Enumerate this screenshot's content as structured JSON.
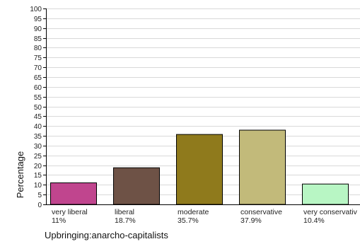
{
  "chart_data": {
    "type": "bar",
    "ylabel": "Percentage",
    "xlabel": "Upbringing:anarcho-capitalists",
    "ylim": [
      0,
      100
    ],
    "yticks": [
      0,
      5,
      10,
      15,
      20,
      25,
      30,
      35,
      40,
      45,
      50,
      55,
      60,
      65,
      70,
      75,
      80,
      85,
      90,
      95,
      100
    ],
    "grid": true,
    "categories": [
      "very liberal",
      "liberal",
      "moderate",
      "conservative",
      "very conservativ"
    ],
    "value_labels": [
      "11%",
      "18.7%",
      "35.7%",
      "37.9%",
      "10.4%"
    ],
    "values": [
      11,
      18.7,
      35.7,
      37.9,
      10.4
    ],
    "colors": [
      "#c0458e",
      "#6e5246",
      "#8f7a1c",
      "#c2ba7a",
      "#b8f6c4"
    ]
  }
}
